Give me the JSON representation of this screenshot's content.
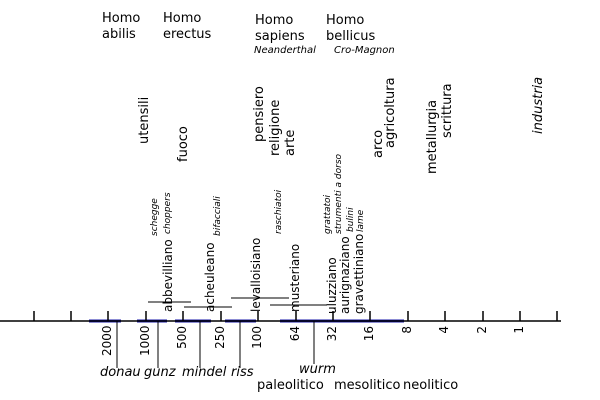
{
  "species": [
    {
      "name": "Homo\nabilis"
    },
    {
      "name": "Homo\nerectus"
    },
    {
      "name": "Homo\nsapiens"
    },
    {
      "name": "Homo\nbellicus"
    }
  ],
  "cultures": [
    "Neanderthal",
    "Cro-Magnon"
  ],
  "activities": {
    "utensili": "utensili",
    "fuoco": "fuoco",
    "pensiero": "pensiero",
    "religione": "religione",
    "arte": "arte",
    "arco": "arco",
    "agricoltura": "agricoltura",
    "metallurgia": "metallurgia",
    "scrittura": "scrittura",
    "industria": "industria"
  },
  "tools": {
    "schegge": "schegge",
    "choppers": "choppers",
    "bifacciali": "bifacciali",
    "raschiatoi": "raschiatoi",
    "grattatoi": "grattatoi",
    "strumenti_a_dorso": "strumenti a dorso",
    "bulini": "bulini",
    "lame": "lame"
  },
  "industries": {
    "abbevilliano": "abbevilliano",
    "acheuleano": "acheuleano",
    "levalloisiano": "levalloisiano",
    "musteriano": "musteriano",
    "uluzziano": "uluzziano",
    "aurignaziano": "aurignaziano",
    "gravettiniano": "gravettiniano"
  },
  "axis": {
    "ticks": [
      "2000",
      "1000",
      "500",
      "250",
      "100",
      "64",
      "32",
      "16",
      "8",
      "4",
      "2",
      "1"
    ]
  },
  "glaciations": [
    "donau",
    "gunz",
    "mindel",
    "riss",
    "wurm"
  ],
  "periods": [
    "paleolitico",
    "mesolitico",
    "neolitico"
  ],
  "colors": {
    "glaciation_bar": "#1a1aaa",
    "line": "#000000"
  }
}
